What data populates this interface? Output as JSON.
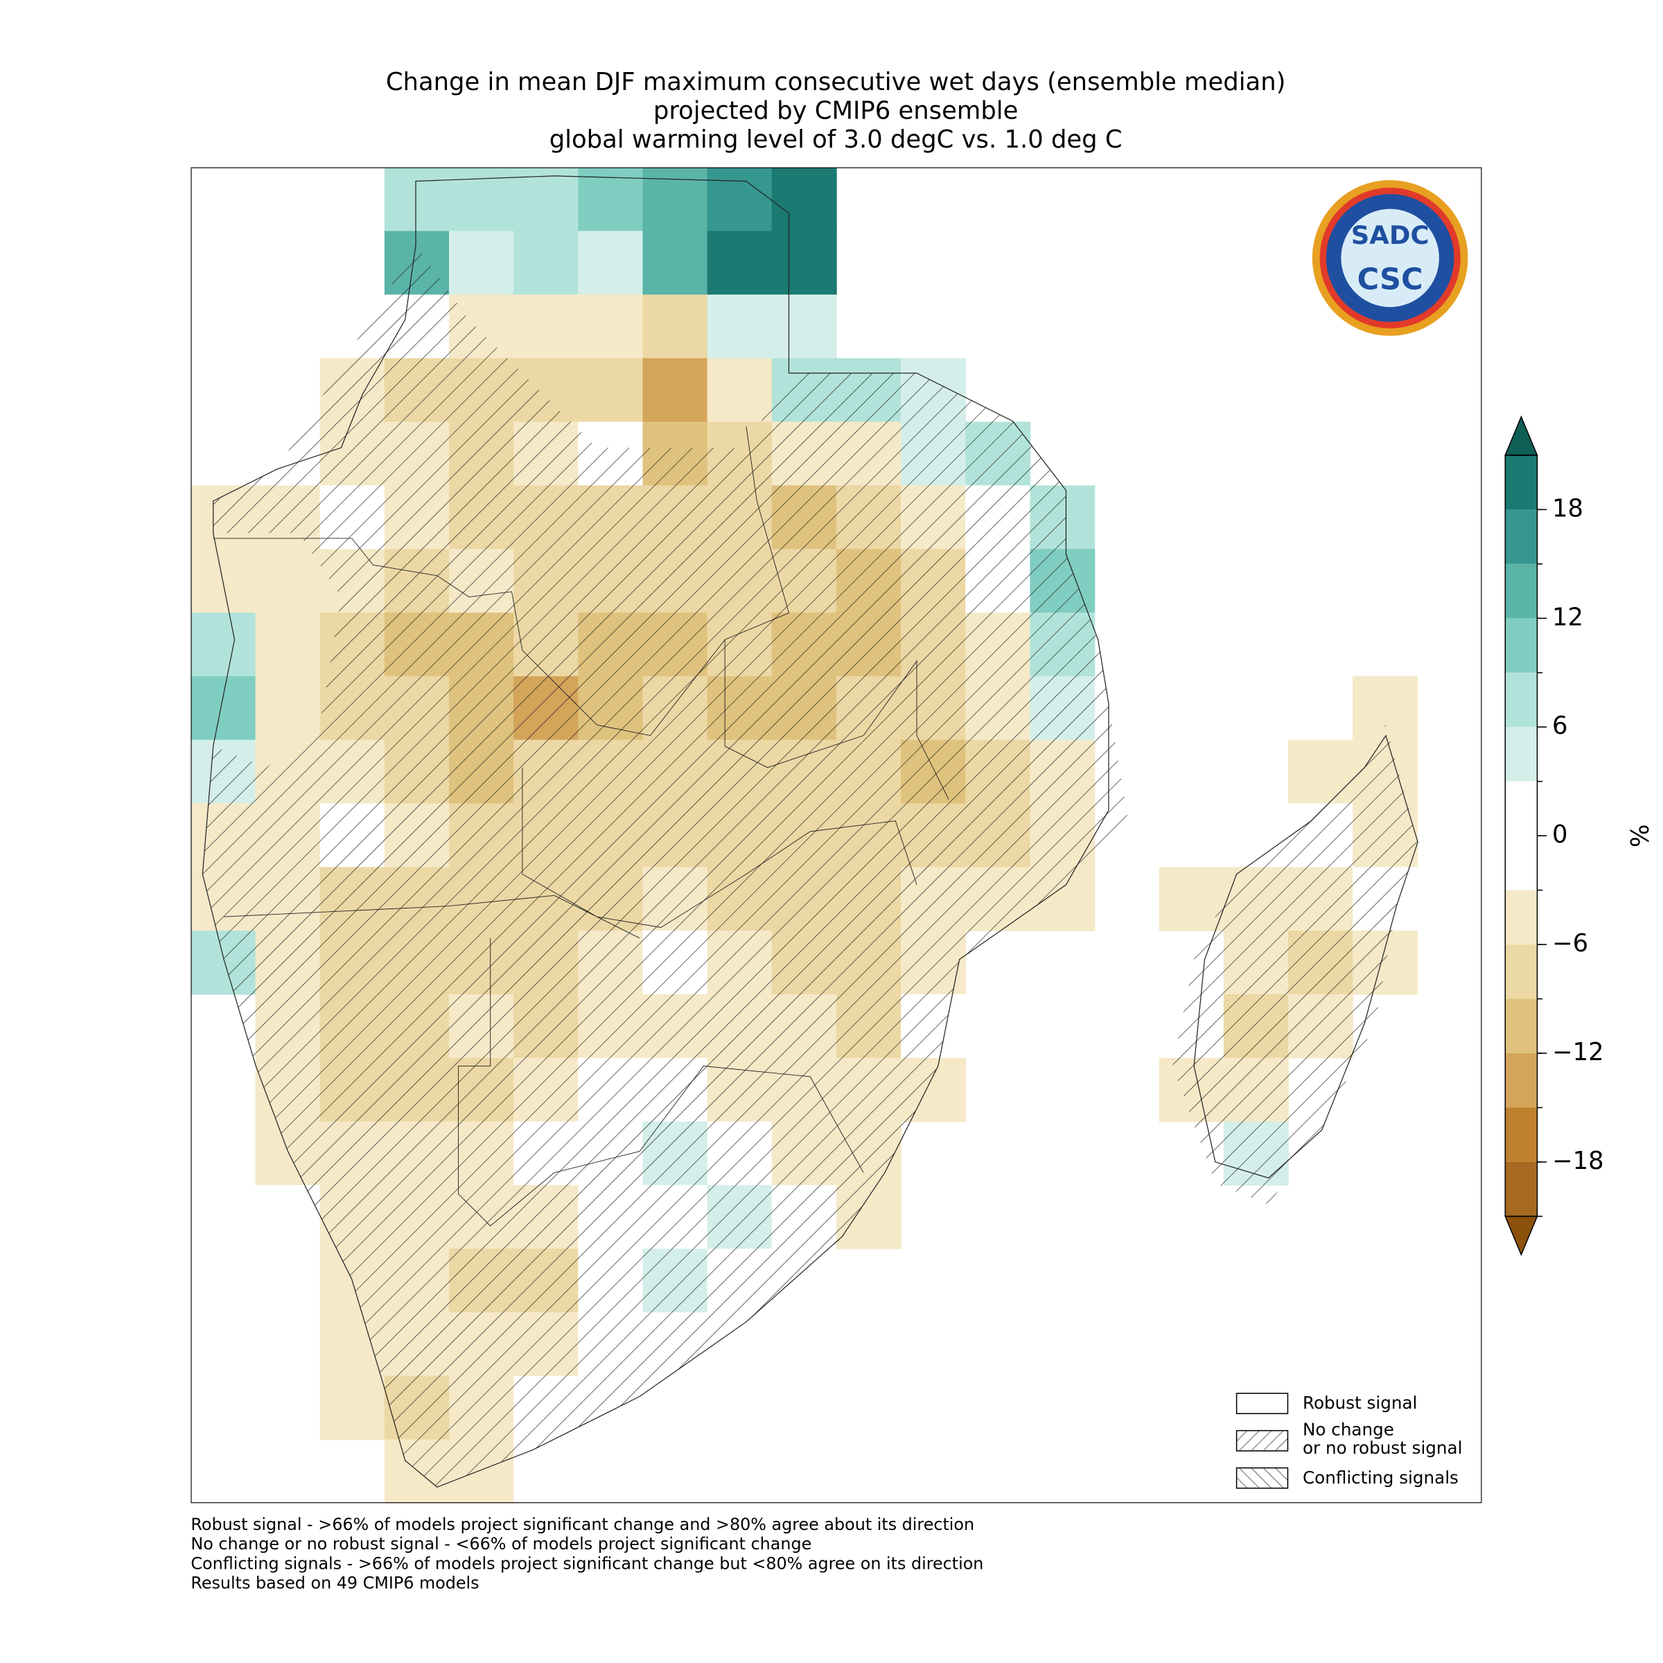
{
  "chart_data": {
    "type": "heatmap",
    "title": [
      "Change in mean DJF maximum consecutive wet days (ensemble median)",
      "projected by CMIP6 ensemble",
      "global warming level of 3.0 degC vs. 1.0 deg C"
    ],
    "grid": [
      [
        null,
        null,
        null,
        7,
        7,
        7,
        10,
        13,
        16,
        19,
        null,
        null,
        null,
        null,
        null,
        null,
        null,
        null,
        null,
        null
      ],
      [
        null,
        null,
        null,
        13,
        4,
        7,
        4,
        13,
        19,
        19,
        null,
        null,
        null,
        null,
        null,
        null,
        null,
        null,
        null,
        null
      ],
      [
        null,
        null,
        null,
        0,
        -4,
        -4,
        -4,
        -7,
        4,
        4,
        null,
        null,
        null,
        null,
        null,
        null,
        null,
        null,
        null,
        null
      ],
      [
        null,
        null,
        -4,
        -7,
        -7,
        -7,
        -7,
        -13,
        -4,
        7,
        7,
        4,
        null,
        null,
        null,
        null,
        null,
        null,
        null,
        null
      ],
      [
        null,
        null,
        -4,
        -4,
        -7,
        -4,
        0,
        -10,
        -7,
        -4,
        -4,
        4,
        7,
        null,
        null,
        null,
        null,
        null,
        null,
        null
      ],
      [
        -4,
        -4,
        0,
        -4,
        -7,
        -7,
        -7,
        -7,
        -7,
        -10,
        -7,
        -4,
        0,
        7,
        null,
        null,
        null,
        null,
        null,
        null
      ],
      [
        -4,
        -4,
        -4,
        -7,
        -4,
        -7,
        -7,
        -7,
        -7,
        -7,
        -10,
        -7,
        0,
        10,
        null,
        null,
        null,
        null,
        null,
        null
      ],
      [
        7,
        -4,
        -7,
        -10,
        -10,
        -7,
        -10,
        -10,
        -7,
        -10,
        -10,
        -7,
        -4,
        7,
        null,
        null,
        null,
        null,
        null,
        null
      ],
      [
        10,
        -4,
        -7,
        -7,
        -10,
        -13,
        -10,
        -7,
        -10,
        -10,
        -7,
        -7,
        -4,
        4,
        null,
        null,
        null,
        null,
        -4,
        null
      ],
      [
        4,
        -4,
        -4,
        -7,
        -10,
        -7,
        -7,
        -7,
        -7,
        -7,
        -7,
        -10,
        -7,
        -4,
        null,
        null,
        null,
        -4,
        -4,
        null
      ],
      [
        -4,
        -4,
        0,
        -4,
        -7,
        -7,
        -7,
        -7,
        -7,
        -7,
        -7,
        -7,
        -7,
        -4,
        null,
        null,
        null,
        0,
        -4,
        null
      ],
      [
        -4,
        -4,
        -7,
        -7,
        -7,
        -7,
        -7,
        -4,
        -7,
        -7,
        -7,
        -4,
        -4,
        -4,
        null,
        -4,
        -4,
        -4,
        0,
        null
      ],
      [
        7,
        -4,
        -7,
        -7,
        -7,
        -7,
        -4,
        0,
        -4,
        -7,
        -7,
        -4,
        null,
        null,
        null,
        null,
        -4,
        -7,
        -4,
        null
      ],
      [
        null,
        -4,
        -7,
        -7,
        -4,
        -7,
        -4,
        -4,
        -4,
        -4,
        -7,
        0,
        null,
        null,
        null,
        null,
        -7,
        -4,
        null,
        null
      ],
      [
        null,
        -4,
        -7,
        -7,
        -7,
        -4,
        0,
        0,
        -4,
        -4,
        -4,
        -4,
        null,
        null,
        null,
        -4,
        -4,
        null,
        null,
        null
      ],
      [
        null,
        -4,
        -4,
        -4,
        -4,
        0,
        0,
        4,
        0,
        -4,
        -4,
        null,
        null,
        null,
        null,
        null,
        4,
        null,
        null,
        null
      ],
      [
        null,
        0,
        -4,
        -4,
        -4,
        -4,
        0,
        0,
        4,
        0,
        -4,
        null,
        null,
        null,
        null,
        null,
        null,
        null,
        null,
        null
      ],
      [
        null,
        null,
        -4,
        -4,
        -7,
        -7,
        0,
        4,
        0,
        null,
        null,
        null,
        null,
        null,
        null,
        null,
        null,
        null,
        null,
        null
      ],
      [
        null,
        null,
        -4,
        -4,
        -4,
        -4,
        0,
        0,
        null,
        null,
        null,
        null,
        null,
        null,
        null,
        null,
        null,
        null,
        null,
        null
      ],
      [
        null,
        null,
        -4,
        -7,
        -4,
        0,
        0,
        null,
        null,
        null,
        null,
        null,
        null,
        null,
        null,
        null,
        null,
        null,
        null,
        null
      ],
      [
        null,
        null,
        null,
        -4,
        -4,
        0,
        null,
        null,
        null,
        null,
        null,
        null,
        null,
        null,
        null,
        null,
        null,
        null,
        null,
        null
      ]
    ],
    "colorbar": {
      "label": "%",
      "levels": [
        -21,
        -18,
        -15,
        -12,
        -9,
        -6,
        -3,
        0,
        3,
        6,
        9,
        12,
        15,
        18,
        21
      ],
      "colors": [
        "#a56a1f",
        "#bf812d",
        "#d4a45a",
        "#dfc27d",
        "#ecd8a4",
        "#f5e9c8",
        "#ffffff",
        "#ffffff",
        "#d4efe9",
        "#b2e3da",
        "#80cdc1",
        "#5ab4a8",
        "#35978f",
        "#1b7a71"
      ],
      "under_color": "#8c510a",
      "over_color": "#0f5f56",
      "ticks": [
        {
          "value": -18,
          "label": "−18"
        },
        {
          "value": -12,
          "label": "−12"
        },
        {
          "value": -6,
          "label": "−6"
        },
        0,
        6,
        12,
        18
      ]
    },
    "legend": [
      "Robust signal",
      "No change\nor no robust signal",
      "Conflicting signals"
    ],
    "footnotes": [
      "Robust signal - >66% of models project significant change and >80% agree about its direction",
      "No change or no robust signal - <66% of models project significant change",
      "Conflicting signals - >66% of models project significant change but <80% agree on its direction",
      "Results based on 49 CMIP6 models"
    ],
    "logo": [
      "SADC",
      "CSC"
    ]
  }
}
